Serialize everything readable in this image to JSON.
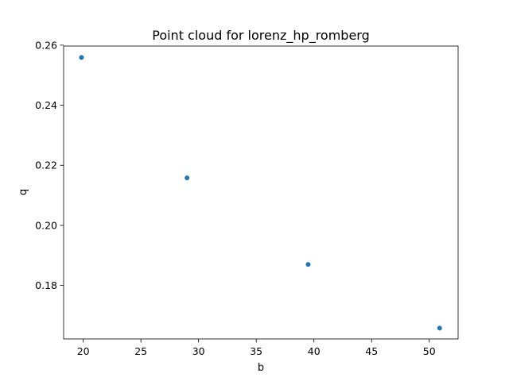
{
  "chart_data": {
    "type": "scatter",
    "title": "Point cloud for lorenz_hp_romberg",
    "xlabel": "b",
    "ylabel": "q",
    "xlim": [
      18.3,
      52.5
    ],
    "ylim": [
      0.1622,
      0.2597
    ],
    "x_ticks": [
      20,
      25,
      30,
      35,
      40,
      45,
      50
    ],
    "y_ticks": [
      0.18,
      0.2,
      0.22,
      0.24,
      0.26
    ],
    "y_tick_labels": [
      "0.18",
      "0.20",
      "0.22",
      "0.24",
      "0.26"
    ],
    "grid": false,
    "marker_color": "#1f77b4",
    "points": [
      {
        "x": 19.85,
        "y": 0.2559
      },
      {
        "x": 29.0,
        "y": 0.2158
      },
      {
        "x": 39.5,
        "y": 0.187
      },
      {
        "x": 50.9,
        "y": 0.1658
      }
    ]
  }
}
